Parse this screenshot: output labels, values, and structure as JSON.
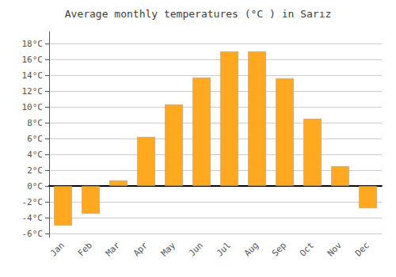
{
  "chart_data": {
    "type": "bar",
    "title": "Average monthly temperatures (°C ) in Sarız",
    "categories": [
      "Jan",
      "Feb",
      "Mar",
      "Apr",
      "May",
      "Jun",
      "Jul",
      "Aug",
      "Sep",
      "Oct",
      "Nov",
      "Dec"
    ],
    "values": [
      -5.0,
      -3.5,
      0.7,
      6.2,
      10.3,
      13.7,
      17.0,
      17.0,
      13.6,
      8.5,
      2.5,
      -2.8
    ],
    "color": "#FFA820",
    "ylim": [
      -6.5,
      19.5
    ],
    "yticks": [
      {
        "value": -6,
        "label": "-6°C"
      },
      {
        "value": -4,
        "label": "-4°C"
      },
      {
        "value": -2,
        "label": "-2°C"
      },
      {
        "value": 0,
        "label": "0°C"
      },
      {
        "value": 2,
        "label": "2°C"
      },
      {
        "value": 4,
        "label": "4°C"
      },
      {
        "value": 6,
        "label": "6°C"
      },
      {
        "value": 8,
        "label": "8°C"
      },
      {
        "value": 10,
        "label": "10°C"
      },
      {
        "value": 12,
        "label": "12°C"
      },
      {
        "value": 14,
        "label": "14°C"
      },
      {
        "value": 16,
        "label": "16°C"
      },
      {
        "value": 18,
        "label": "18°C"
      }
    ],
    "grid": true
  }
}
